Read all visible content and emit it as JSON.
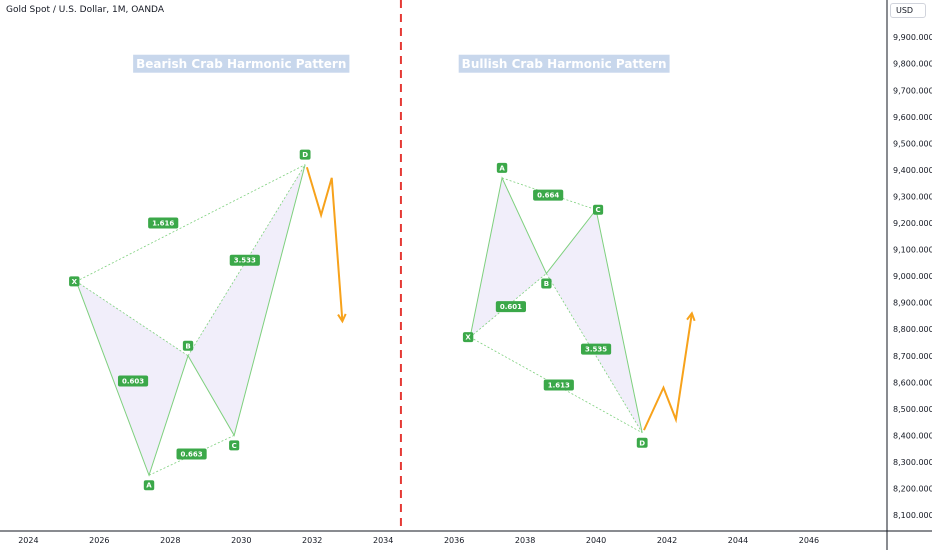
{
  "header": {
    "symbol_title": "Gold Spot / U.S. Dollar, 1M, OANDA",
    "currency": "USD"
  },
  "colors": {
    "pattern_line": "#7ed07e",
    "pattern_fill": "#f1eefa",
    "label_bg": "#3ba849",
    "title_bg": "#c8d7ec",
    "projection": "#f7a21b",
    "divider": "#e53935",
    "axis_line": "#131722"
  },
  "chart_data": {
    "type": "line",
    "x_axis": {
      "ticks": [
        "2024",
        "2026",
        "2028",
        "2030",
        "2032",
        "2034",
        "2036",
        "2038",
        "2040",
        "2042",
        "2044",
        "2046"
      ],
      "range": [
        2023.2,
        2048.2
      ]
    },
    "y_axis": {
      "ticks": [
        "8,100.000",
        "8,200.000",
        "8,300.000",
        "8,400.000",
        "8,500.000",
        "8,600.000",
        "8,700.000",
        "8,800.000",
        "8,900.000",
        "9,000.000",
        "9,100.000",
        "9,200.000",
        "9,300.000",
        "9,400.000",
        "9,500.000",
        "9,600.000",
        "9,700.000",
        "9,800.000",
        "9,900.000"
      ],
      "range": [
        8040,
        10040
      ]
    },
    "divider_x": 2034.5,
    "patterns": [
      {
        "title": "Bearish Crab Harmonic Pattern",
        "title_x": 2030.0,
        "title_y": 9800,
        "points": [
          {
            "name": "X",
            "x": 2025.35,
            "y": 8980
          },
          {
            "name": "A",
            "x": 2027.4,
            "y": 8250
          },
          {
            "name": "B",
            "x": 2028.5,
            "y": 8700
          },
          {
            "name": "C",
            "x": 2029.8,
            "y": 8400
          },
          {
            "name": "D",
            "x": 2031.8,
            "y": 9420
          }
        ],
        "point_label_side": [
          "left",
          "below",
          "above",
          "below",
          "above"
        ],
        "ratios": [
          {
            "label": "0.603",
            "x": 2026.95,
            "y": 8605
          },
          {
            "label": "0.663",
            "x": 2028.6,
            "y": 8330
          },
          {
            "label": "3.533",
            "x": 2030.1,
            "y": 9060
          },
          {
            "label": "1.616",
            "x": 2027.8,
            "y": 9200
          }
        ],
        "projection": [
          {
            "x": 2031.85,
            "y": 9410
          },
          {
            "x": 2032.25,
            "y": 9230
          },
          {
            "x": 2032.55,
            "y": 9370
          },
          {
            "x": 2032.85,
            "y": 8830
          }
        ]
      },
      {
        "title": "Bullish Crab Harmonic Pattern",
        "title_x": 2039.1,
        "title_y": 9800,
        "points": [
          {
            "name": "X",
            "x": 2036.45,
            "y": 8770
          },
          {
            "name": "A",
            "x": 2037.35,
            "y": 9370
          },
          {
            "name": "B",
            "x": 2038.6,
            "y": 9010
          },
          {
            "name": "C",
            "x": 2040.0,
            "y": 9250
          },
          {
            "name": "D",
            "x": 2041.3,
            "y": 8410
          }
        ],
        "point_label_side": [
          "left",
          "above",
          "below",
          "right",
          "below"
        ],
        "ratios": [
          {
            "label": "0.664",
            "x": 2038.65,
            "y": 9305
          },
          {
            "label": "0.601",
            "x": 2037.6,
            "y": 8885
          },
          {
            "label": "3.535",
            "x": 2040.0,
            "y": 8725
          },
          {
            "label": "1.613",
            "x": 2038.95,
            "y": 8590
          }
        ],
        "projection": [
          {
            "x": 2041.35,
            "y": 8420
          },
          {
            "x": 2041.9,
            "y": 8580
          },
          {
            "x": 2042.25,
            "y": 8460
          },
          {
            "x": 2042.7,
            "y": 8860
          }
        ]
      }
    ]
  }
}
